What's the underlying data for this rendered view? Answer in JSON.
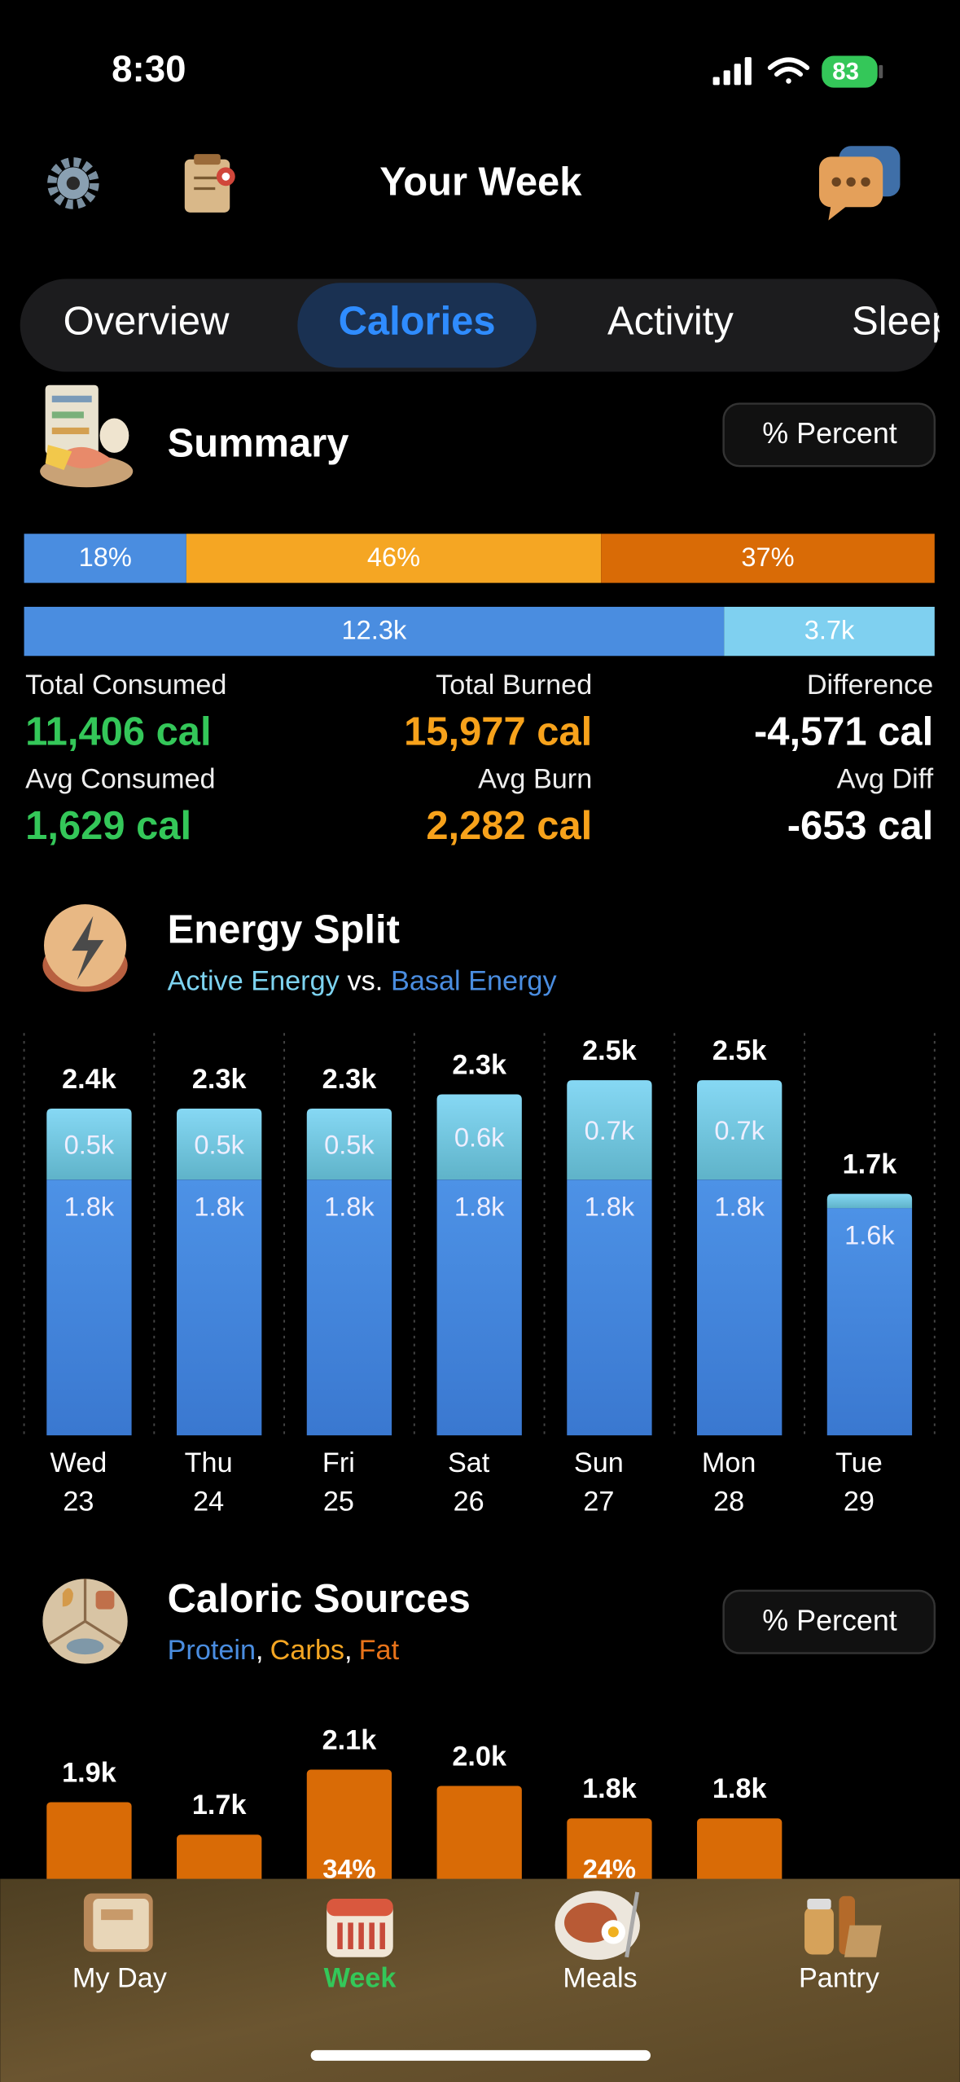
{
  "status_bar": {
    "time": "8:30",
    "battery": "83"
  },
  "header": {
    "title": "Your Week"
  },
  "tabs": {
    "items": [
      "Overview",
      "Calories",
      "Activity",
      "Sleep"
    ],
    "selected": 1
  },
  "summary": {
    "title": "Summary",
    "button": "% Percent",
    "macro_bar": {
      "values": [
        18,
        46,
        37
      ],
      "value_labels": [
        "18%",
        "46%",
        "37%"
      ],
      "colors": [
        "#4a8de0",
        "#f5a623",
        "#d96b06"
      ]
    },
    "energy_bar": {
      "values": [
        12300,
        3700
      ],
      "value_labels": [
        "12.3k",
        "3.7k"
      ],
      "colors": [
        "#4a8de0",
        "#7fd0f0"
      ]
    },
    "stats": [
      {
        "label": "Total Consumed",
        "value": "11,406 cal",
        "color": "#34c759"
      },
      {
        "label": "Total Burned",
        "value": "15,977 cal",
        "color": "#f7a21b"
      },
      {
        "label": "Difference",
        "value": "-4,571 cal",
        "color": "#ffffff"
      },
      {
        "label": "Avg Consumed",
        "value": "1,629 cal",
        "color": "#34c759"
      },
      {
        "label": "Avg Burn",
        "value": "2,282 cal",
        "color": "#f7a21b"
      },
      {
        "label": "Avg Diff",
        "value": "-653 cal",
        "color": "#ffffff"
      }
    ]
  },
  "energy_split": {
    "type": "bar",
    "title": "Energy Split",
    "separator": "vs.",
    "days": [
      "Wed",
      "Thu",
      "Fri",
      "Sat",
      "Sun",
      "Mon",
      "Tue"
    ],
    "dates": [
      "23",
      "24",
      "25",
      "26",
      "27",
      "28",
      "29"
    ],
    "total_labels": [
      "2.4k",
      "2.3k",
      "2.3k",
      "2.3k",
      "2.5k",
      "2.5k",
      "1.7k"
    ],
    "series": [
      {
        "name": "Basal Energy",
        "color": "#4a8de0",
        "values": [
          1800,
          1800,
          1800,
          1800,
          1800,
          1800,
          1600
        ],
        "value_labels": [
          "1.8k",
          "1.8k",
          "1.8k",
          "1.8k",
          "1.8k",
          "1.8k",
          "1.6k"
        ]
      },
      {
        "name": "Active Energy",
        "color": "#7dd3f0",
        "values": [
          500,
          500,
          500,
          600,
          700,
          700,
          100
        ],
        "value_labels": [
          "0.5k",
          "0.5k",
          "0.5k",
          "0.6k",
          "0.7k",
          "0.7k",
          null
        ]
      }
    ]
  },
  "caloric_sources": {
    "type": "bar",
    "title": "Caloric Sources",
    "button": "% Percent",
    "separator": ",",
    "series": [
      {
        "name": "Protein",
        "color": "#4a8de0"
      },
      {
        "name": "Carbs",
        "color": "#f5a623"
      },
      {
        "name": "Fat",
        "color": "#e8731a"
      }
    ],
    "values": [
      1900,
      1700,
      2100,
      2000,
      1800,
      1800
    ],
    "value_labels": [
      "1.9k",
      "1.7k",
      "2.1k",
      "2.0k",
      "1.8k",
      "1.8k"
    ],
    "segment_labels": [
      null,
      null,
      "34%",
      null,
      "24%",
      null
    ]
  },
  "tab_bar": {
    "items": [
      "My Day",
      "Week",
      "Meals",
      "Pantry"
    ],
    "selected": 1
  }
}
